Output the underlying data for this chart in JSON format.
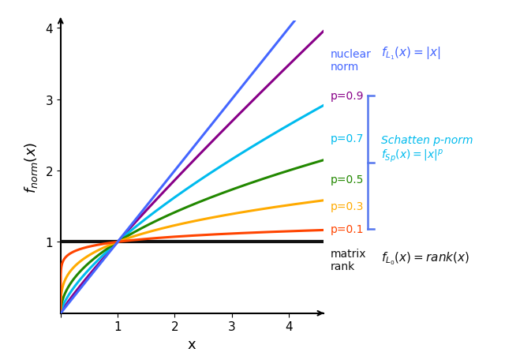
{
  "title": "",
  "xlabel": "x",
  "ylabel": "$f_{norm}(x)$",
  "xlim": [
    0,
    4.6
  ],
  "ylim": [
    0,
    4.1
  ],
  "xticks": [
    0,
    1,
    2,
    3,
    4
  ],
  "yticks": [
    1,
    2,
    3,
    4
  ],
  "nuclear_norm_color": "#4466FF",
  "schatten_colors": {
    "0.9": "#880088",
    "0.7": "#00BBEE",
    "0.5": "#228800",
    "0.3": "#FFAA00",
    "0.1": "#FF4400"
  },
  "matrix_rank_color": "#111111",
  "bracket_color": "#5577EE",
  "p_values": [
    0.9,
    0.7,
    0.5,
    0.3,
    0.1
  ]
}
